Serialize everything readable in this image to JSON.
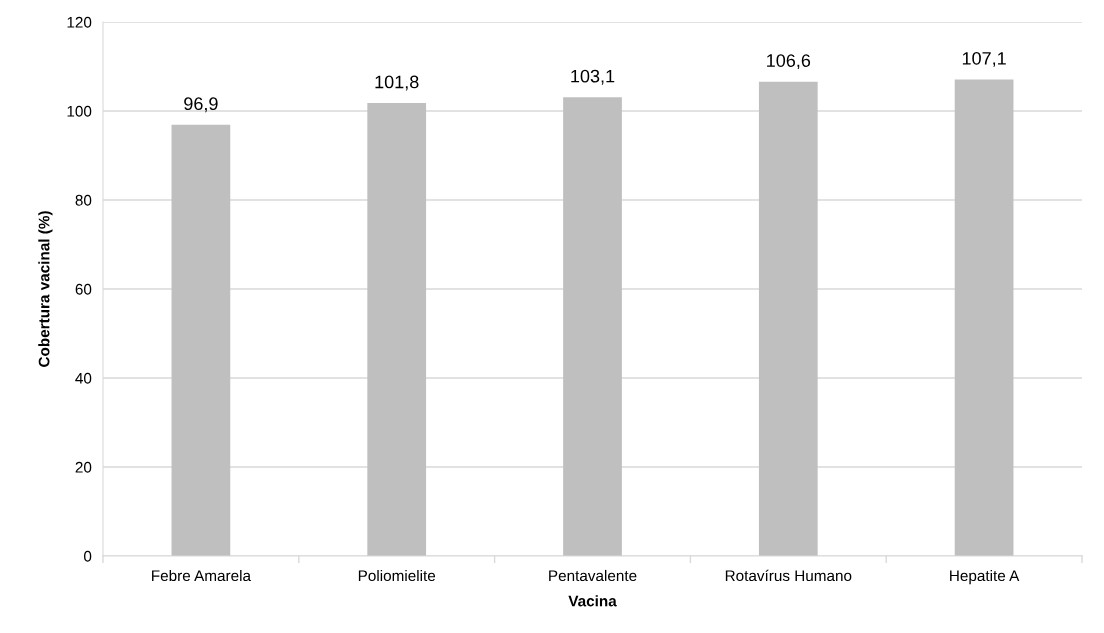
{
  "chart_data": {
    "type": "bar",
    "xlabel": "Vacina",
    "ylabel": "Cobertura vacinal (%)",
    "categories": [
      "Febre Amarela",
      "Poliomielite",
      "Pentavalente",
      "Rotavírus Humano",
      "Hepatite A"
    ],
    "values": [
      96.9,
      101.8,
      103.1,
      106.6,
      107.1
    ],
    "value_labels": [
      "96,9",
      "101,8",
      "103,1",
      "106,6",
      "107,1"
    ],
    "color": "#bfbfbf",
    "ylim": [
      0,
      120
    ],
    "yticks": [
      0,
      20,
      40,
      60,
      80,
      100,
      120
    ],
    "grid": "y"
  }
}
